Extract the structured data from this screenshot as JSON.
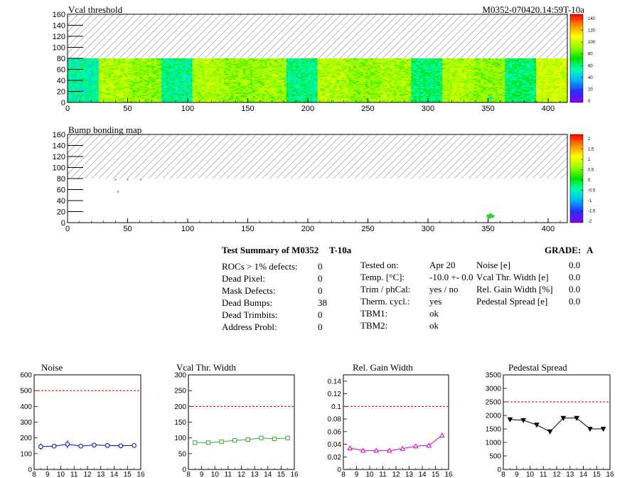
{
  "module_id": "M0352-070420.14:59T-10a",
  "maps": [
    {
      "title": "Vcal threshold",
      "x_ticks": [
        "0",
        "50",
        "100",
        "150",
        "200",
        "250",
        "300",
        "350",
        "400"
      ],
      "y_ticks": [
        "0",
        "20",
        "40",
        "60",
        "80",
        "100",
        "120",
        "140",
        "160"
      ],
      "color_scale": [
        "0",
        "20",
        "40",
        "60",
        "80",
        "100",
        "120",
        "140"
      ],
      "xlim": [
        0,
        416
      ],
      "ylim": [
        0,
        160
      ],
      "data_rows": 80,
      "roc_means": [
        55,
        95,
        90,
        58,
        95,
        90,
        92,
        60,
        95,
        90,
        93,
        62,
        95,
        90,
        62,
        100
      ],
      "spot": {
        "x": 352,
        "y": 8,
        "value": 58
      }
    },
    {
      "title": "Bump bonding map",
      "x_ticks": [
        "0",
        "50",
        "100",
        "150",
        "200",
        "250",
        "300",
        "350",
        "400"
      ],
      "y_ticks": [
        "0",
        "20",
        "40",
        "60",
        "80",
        "100",
        "120",
        "140",
        "160"
      ],
      "color_scale": [
        "-2",
        "-1.5",
        "-1",
        "-0.5",
        "0",
        "0.5",
        "1",
        "1.5",
        "2"
      ],
      "xlim": [
        0,
        416
      ],
      "ylim": [
        0,
        160
      ],
      "data_rows": 80,
      "dead_bumps": [
        {
          "x": 40,
          "y": 78
        },
        {
          "x": 50,
          "y": 78
        },
        {
          "x": 61,
          "y": 78
        },
        {
          "x": 42,
          "y": 56
        },
        {
          "x": 350,
          "y": 12
        },
        {
          "x": 352,
          "y": 14
        },
        {
          "x": 354,
          "y": 12
        },
        {
          "x": 351,
          "y": 10
        },
        {
          "x": 353,
          "y": 11
        }
      ]
    }
  ],
  "summary": {
    "heading": "Test Summary of M0352",
    "temp_tag": "T-10a",
    "grade_label": "GRADE:",
    "grade": "A",
    "col1": [
      {
        "label": "ROCs > 1% defects:",
        "value": "0"
      },
      {
        "label": "Dead Pixel:",
        "value": "0"
      },
      {
        "label": "Mask Defects:",
        "value": "0"
      },
      {
        "label": "Dead Bumps:",
        "value": "38"
      },
      {
        "label": "Dead Trimbits:",
        "value": "0"
      },
      {
        "label": "Address Probl:",
        "value": "0"
      }
    ],
    "col2": [
      {
        "label": "Tested on:",
        "value": "Apr 20"
      },
      {
        "label": "Temp. [°C]:",
        "value": "-10.0 +- 0.0"
      },
      {
        "label": "Trim / phCal:",
        "value": "yes / no"
      },
      {
        "label": "Therm. cycl.:",
        "value": "yes"
      },
      {
        "label": "TBM1:",
        "value": "ok"
      },
      {
        "label": "TBM2:",
        "value": "ok"
      }
    ],
    "col3": [
      {
        "label": "Noise [e]",
        "value": "0.0"
      },
      {
        "label": "Vcal Thr. Width [e]",
        "value": "0.0"
      },
      {
        "label": "Rel. Gain Width [%]",
        "value": "0.0"
      },
      {
        "label": "Pedestal Spread [e]",
        "value": "0.0"
      }
    ]
  },
  "chart_data": [
    {
      "type": "line",
      "title": "Noise",
      "x": [
        8.5,
        9.5,
        10.5,
        11.5,
        12.5,
        13.5,
        14.5,
        15.5
      ],
      "values": [
        145,
        148,
        160,
        148,
        155,
        152,
        150,
        152
      ],
      "errors": [
        20,
        12,
        25,
        15,
        12,
        10,
        10,
        10
      ],
      "xlim": [
        8,
        16
      ],
      "ylim": [
        0,
        600
      ],
      "x_ticks": [
        "8",
        "9",
        "10",
        "11",
        "12",
        "13",
        "14",
        "15",
        "16"
      ],
      "y_ticks": [
        "0",
        "100",
        "200",
        "300",
        "400",
        "500",
        "600"
      ],
      "threshold": 500,
      "color": "#0000cc",
      "marker": "circle"
    },
    {
      "type": "line",
      "title": "Vcal Thr. Width",
      "x": [
        8.5,
        9.5,
        10.5,
        11.5,
        12.5,
        13.5,
        14.5,
        15.5
      ],
      "values": [
        85,
        85,
        88,
        92,
        95,
        100,
        97,
        100
      ],
      "xlim": [
        8,
        16
      ],
      "ylim": [
        0,
        300
      ],
      "x_ticks": [
        "8",
        "9",
        "10",
        "11",
        "12",
        "13",
        "14",
        "15",
        "16"
      ],
      "y_ticks": [
        "0",
        "50",
        "100",
        "150",
        "200",
        "250",
        "300"
      ],
      "threshold": 200,
      "color": "#33aa33",
      "marker": "square"
    },
    {
      "type": "line",
      "title": "Rel. Gain Width",
      "x": [
        8.5,
        9.5,
        10.5,
        11.5,
        12.5,
        13.5,
        14.5,
        15.5
      ],
      "values": [
        0.034,
        0.03,
        0.03,
        0.03,
        0.033,
        0.037,
        0.038,
        0.054
      ],
      "xlim": [
        8,
        16
      ],
      "ylim": [
        0,
        0.15
      ],
      "x_ticks": [
        "8",
        "9",
        "10",
        "11",
        "12",
        "13",
        "14",
        "15",
        "16"
      ],
      "y_ticks": [
        "0",
        "0.02",
        "0.04",
        "0.06",
        "0.08",
        "0.1",
        "0.12",
        "0.14"
      ],
      "threshold": 0.1,
      "color": "#cc00cc",
      "marker": "triangle-up"
    },
    {
      "type": "line",
      "title": "Pedestal Spread",
      "x": [
        8.5,
        9.5,
        10.5,
        11.5,
        12.5,
        13.5,
        14.5,
        15.5
      ],
      "values": [
        1850,
        1820,
        1650,
        1400,
        1900,
        1900,
        1500,
        1500
      ],
      "xlim": [
        8,
        16
      ],
      "ylim": [
        0,
        3500
      ],
      "x_ticks": [
        "8",
        "9",
        "10",
        "11",
        "12",
        "13",
        "14",
        "15",
        "16"
      ],
      "y_ticks": [
        "0",
        "500",
        "1000",
        "1500",
        "2000",
        "2500",
        "3000",
        "3500"
      ],
      "threshold": 2500,
      "color": "#000000",
      "marker": "triangle-down"
    }
  ]
}
